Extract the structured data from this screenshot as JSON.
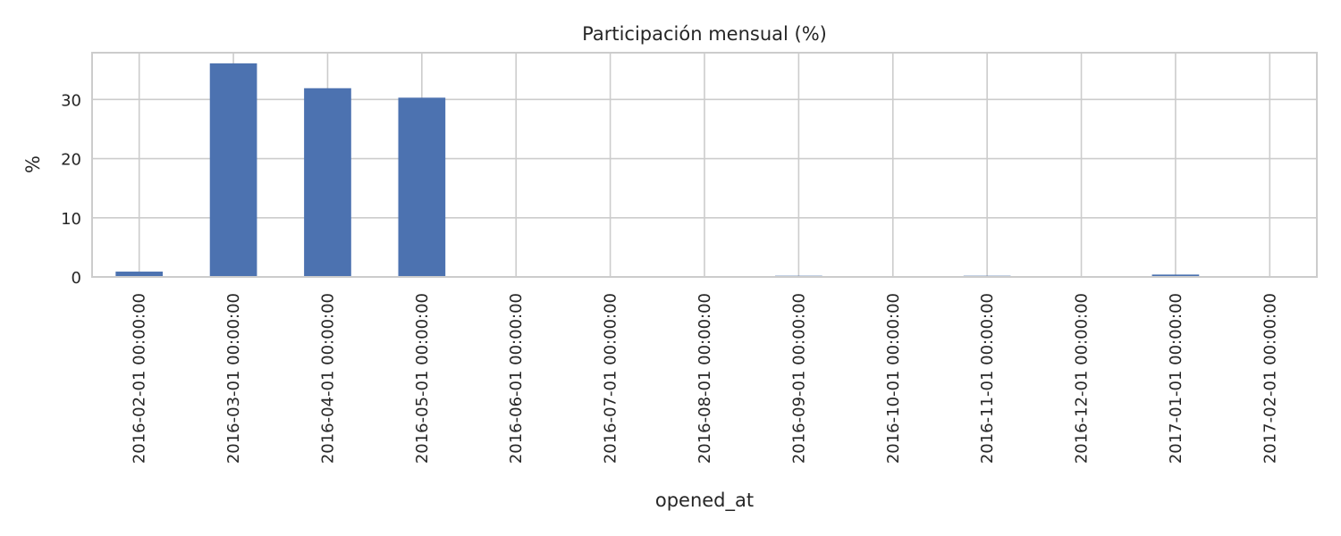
{
  "chart_data": {
    "type": "bar",
    "title": "Participación mensual (%)",
    "xlabel": "opened_at",
    "ylabel": "%",
    "categories": [
      "2016-02-01 00:00:00",
      "2016-03-01 00:00:00",
      "2016-04-01 00:00:00",
      "2016-05-01 00:00:00",
      "2016-06-01 00:00:00",
      "2016-07-01 00:00:00",
      "2016-08-01 00:00:00",
      "2016-09-01 00:00:00",
      "2016-10-01 00:00:00",
      "2016-11-01 00:00:00",
      "2016-12-01 00:00:00",
      "2017-01-01 00:00:00",
      "2017-02-01 00:00:00"
    ],
    "values": [
      0.9,
      36.1,
      31.9,
      30.3,
      0.1,
      0.15,
      0.15,
      0.2,
      0.1,
      0.2,
      0.15,
      0.4,
      0.1
    ],
    "ylim": [
      0,
      37.9
    ],
    "yticks": [
      0,
      10,
      20,
      30
    ],
    "grid": true,
    "colors": {
      "bar": "#4c72b0",
      "grid": "#cccccc",
      "spine": "#cccccc",
      "text": "#262626",
      "background": "#ffffff"
    }
  }
}
